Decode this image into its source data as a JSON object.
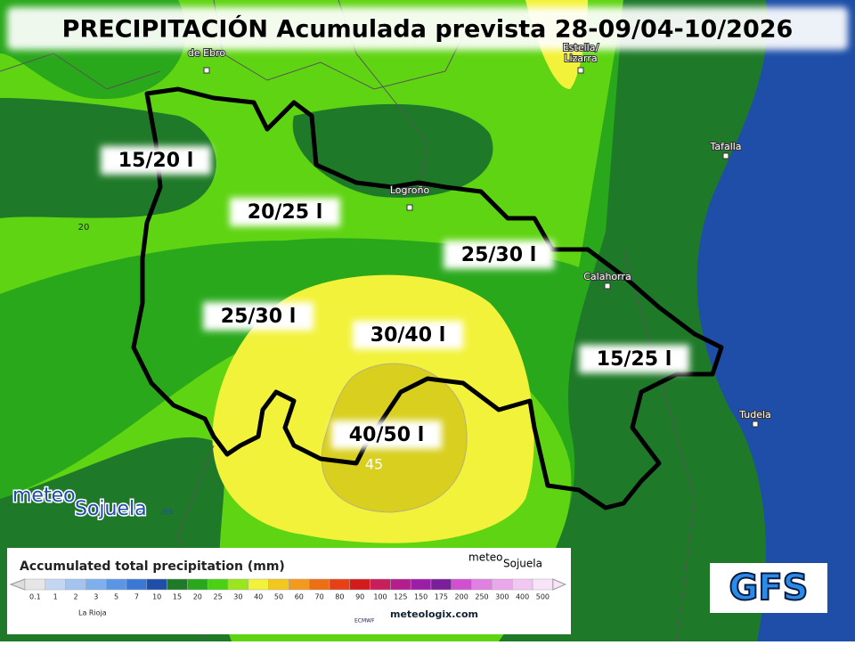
{
  "header": {
    "title": "PRECIPITACIÓN Acumulada prevista 28-09/04-10/2026"
  },
  "towns": [
    "de Ebro",
    "Estella/ Lizarra",
    "Tafalla",
    "Logroño",
    "Calahorra",
    "Tudela"
  ],
  "zone_labels": [
    "15/20 l",
    "20/25 l",
    "25/30 l",
    "25/30 l",
    "30/40 l",
    "40/50 l",
    "15/25 l"
  ],
  "contour_labels": [
    "20",
    "45"
  ],
  "logo": {
    "name_1": "meteo",
    "name_2": "Sojuela",
    "suffix": ".es"
  },
  "legend": {
    "title": "Accumulated total precipitation (mm)",
    "steps": [
      {
        "value": 0.1,
        "color": "#e6e6e6"
      },
      {
        "value": 1,
        "color": "#c4d6f2"
      },
      {
        "value": 2,
        "color": "#a4c4f0"
      },
      {
        "value": 3,
        "color": "#7fb0ee"
      },
      {
        "value": 5,
        "color": "#5a96e4"
      },
      {
        "value": 7,
        "color": "#3a78d6"
      },
      {
        "value": 10,
        "color": "#1e4ea8"
      },
      {
        "value": 15,
        "color": "#1e7a28"
      },
      {
        "value": 20,
        "color": "#2aa81c"
      },
      {
        "value": 25,
        "color": "#4cd014"
      },
      {
        "value": 30,
        "color": "#9ae61a"
      },
      {
        "value": 40,
        "color": "#f2f23a"
      },
      {
        "value": 50,
        "color": "#f2c81e"
      },
      {
        "value": 60,
        "color": "#f29a1e"
      },
      {
        "value": 70,
        "color": "#ee6e14"
      },
      {
        "value": 80,
        "color": "#e64014"
      },
      {
        "value": 90,
        "color": "#d21c1c"
      },
      {
        "value": 100,
        "color": "#c81e5a"
      },
      {
        "value": 125,
        "color": "#b41e8c"
      },
      {
        "value": 150,
        "color": "#9a1ea8"
      },
      {
        "value": 175,
        "color": "#7a1e9a"
      },
      {
        "value": 200,
        "color": "#d050d0"
      },
      {
        "value": 250,
        "color": "#e080e0"
      },
      {
        "value": 300,
        "color": "#eaa8ea"
      },
      {
        "value": 400,
        "color": "#f2c8f2"
      },
      {
        "value": 500,
        "color": "#f8e4f8"
      }
    ],
    "region": "La Rioja",
    "source_1": "ECMWF",
    "source_2": "meteologix.com",
    "brand_1": "meteo",
    "brand_2": "Sojuela"
  },
  "model": "GFS"
}
